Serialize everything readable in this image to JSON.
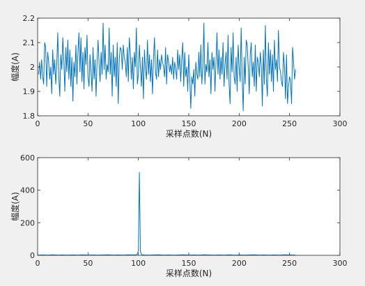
{
  "chart_data": [
    {
      "type": "line",
      "title": "",
      "xlabel": "采样点数(N)",
      "ylabel": "幅度(A)",
      "xlim": [
        0,
        300
      ],
      "ylim": [
        1.8,
        2.2
      ],
      "xticks": [
        "0",
        "50",
        "100",
        "150",
        "200",
        "250",
        "300"
      ],
      "yticks": [
        "1.8",
        "1.9",
        "2",
        "2.1",
        "2.2"
      ],
      "grid": false,
      "line_color": "#0072bd",
      "series": [
        {
          "x": [
            1,
            2,
            3,
            4,
            5,
            6,
            7,
            8,
            9,
            10,
            11,
            12,
            13,
            14,
            15,
            16,
            17,
            18,
            19,
            20,
            21,
            22,
            23,
            24,
            25,
            26,
            27,
            28,
            29,
            30,
            31,
            32,
            33,
            34,
            35,
            36,
            37,
            38,
            39,
            40,
            41,
            42,
            43,
            44,
            45,
            46,
            47,
            48,
            49,
            50,
            51,
            52,
            53,
            54,
            55,
            56,
            57,
            58,
            59,
            60,
            61,
            62,
            63,
            64,
            65,
            66,
            67,
            68,
            69,
            70,
            71,
            72,
            73,
            74,
            75,
            76,
            77,
            78,
            79,
            80,
            81,
            82,
            83,
            84,
            85,
            86,
            87,
            88,
            89,
            90,
            91,
            92,
            93,
            94,
            95,
            96,
            97,
            98,
            99,
            100,
            101,
            102,
            103,
            104,
            105,
            106,
            107,
            108,
            109,
            110,
            111,
            112,
            113,
            114,
            115,
            116,
            117,
            118,
            119,
            120,
            121,
            122,
            123,
            124,
            125,
            126,
            127,
            128,
            129,
            130,
            131,
            132,
            133,
            134,
            135,
            136,
            137,
            138,
            139,
            140,
            141,
            142,
            143,
            144,
            145,
            146,
            147,
            148,
            149,
            150,
            151,
            152,
            153,
            154,
            155,
            156,
            157,
            158,
            159,
            160,
            161,
            162,
            163,
            164,
            165,
            166,
            167,
            168,
            169,
            170,
            171,
            172,
            173,
            174,
            175,
            176,
            177,
            178,
            179,
            180,
            181,
            182,
            183,
            184,
            185,
            186,
            187,
            188,
            189,
            190,
            191,
            192,
            193,
            194,
            195,
            196,
            197,
            198,
            199,
            200,
            201,
            202,
            203,
            204,
            205,
            206,
            207,
            208,
            209,
            210,
            211,
            212,
            213,
            214,
            215,
            216,
            217,
            218,
            219,
            220,
            221,
            222,
            223,
            224,
            225,
            226,
            227,
            228,
            229,
            230,
            231,
            232,
            233,
            234,
            235,
            236,
            237,
            238,
            239,
            240,
            241,
            242,
            243,
            244,
            245,
            246,
            247,
            248,
            249,
            250,
            251,
            252,
            253,
            254,
            255,
            256
          ],
          "y": [
            1.97,
            2.02,
            1.95,
            2.03,
            1.96,
            1.93,
            2.1,
            2.08,
            1.92,
            2.06,
            2.02,
            1.95,
            2.0,
            1.89,
            2.07,
            1.97,
            2.03,
            1.93,
            2.01,
            2.14,
            1.96,
            1.88,
            2.05,
            1.99,
            2.12,
            2.03,
            1.9,
            2.08,
            1.98,
            2.11,
            1.95,
            2.07,
            1.92,
            2.04,
            1.86,
            2.02,
            1.96,
            2.09,
            1.93,
            2.06,
            2.14,
            1.98,
            2.12,
            1.94,
            2.06,
            1.91,
            2.08,
            2.01,
            2.13,
            1.96,
            1.92,
            2.05,
            1.98,
            1.9,
            2.08,
            1.95,
            2.03,
            1.88,
            2.02,
            2.11,
            2.01,
            1.94,
            2.06,
            1.97,
            2.18,
            1.99,
            2.09,
            1.95,
            2.01,
            1.98,
            2.16,
            1.97,
            2.06,
            1.88,
            2.09,
            1.96,
            2.04,
            1.92,
            2.1,
            1.85,
            2.03,
            2.08,
            2.07,
            1.99,
            2.09,
            2.04,
            2.02,
            1.96,
            2.08,
            1.94,
            2.12,
            2.06,
            1.95,
            2.04,
            1.91,
            2.06,
            2.0,
            2.16,
            1.93,
            1.97,
            2.09,
            2.0,
            1.92,
            2.04,
            1.87,
            2.07,
            1.99,
            1.95,
            2.11,
            1.97,
            2.05,
            1.94,
            2.03,
            1.89,
            2.04,
            2.12,
            1.98,
            1.95,
            2.07,
            1.96,
            2.03,
            1.99,
            2.05,
            2.02,
            2.0,
            1.96,
            2.08,
            1.93,
            2.05,
            2.02,
            1.98,
            2.01,
            1.97,
            2.04,
            1.95,
            2.02,
            1.99,
            1.95,
            2.07,
            1.99,
            2.05,
            1.94,
            2.03,
            2.1,
            1.92,
            2.06,
            1.96,
            2.0,
            1.9,
            2.05,
            1.95,
            1.83,
            1.96,
            1.93,
            1.99,
            1.88,
            2.02,
            1.97,
            1.95,
            2.06,
            1.96,
            2.09,
            1.93,
            2.0,
            2.18,
            1.93,
            2.01,
            1.98,
            2.1,
            1.96,
            2.03,
            1.89,
            2.06,
            1.99,
            2.04,
            1.9,
            2.02,
            2.14,
            1.97,
            2.07,
            1.95,
            2.04,
            1.97,
            2.1,
            1.92,
            2.01,
            2.06,
            1.95,
            2.13,
            1.93,
            1.85,
            2.08,
            1.98,
            2.14,
            1.96,
            1.93,
            2.04,
            1.9,
            2.09,
            2.0,
            1.94,
            2.16,
            1.96,
            1.82,
            2.04,
            1.93,
            2.11,
            2.09,
            2.0,
            1.89,
            2.05,
            2.1,
            1.96,
            2.02,
            1.92,
            2.09,
            1.9,
            2.04,
            2.02,
            1.96,
            2.06,
            2.0,
            1.84,
            2.07,
            1.93,
            2.17,
            1.95,
            1.88,
            2.1,
            1.97,
            2.07,
            1.94,
            2.05,
            1.9,
            2.11,
            1.99,
            2.03,
            1.94,
            2.15,
            2.0,
            1.98,
            1.94,
            1.92,
            2.06,
            2.0,
            1.87,
            2.05,
            1.85,
            1.92,
            1.96,
            1.94,
            1.85,
            2.08,
            2.02,
            1.95,
            1.99
          ]
        }
      ]
    },
    {
      "type": "line",
      "title": "",
      "xlabel": "采样点数(N)",
      "ylabel": "幅度(A)",
      "xlim": [
        0,
        300
      ],
      "ylim": [
        0,
        600
      ],
      "xticks": [
        "0",
        "50",
        "100",
        "150",
        "200",
        "250",
        "300"
      ],
      "yticks": [
        "0",
        "200",
        "400",
        "600"
      ],
      "grid": false,
      "line_color": "#0072bd",
      "series": [
        {
          "x": [
            1,
            5,
            10,
            15,
            20,
            25,
            30,
            35,
            40,
            45,
            50,
            55,
            60,
            65,
            70,
            75,
            80,
            85,
            90,
            95,
            98,
            99,
            100,
            101,
            102,
            103,
            104,
            106,
            110,
            115,
            120,
            125,
            130,
            135,
            140,
            145,
            150,
            155,
            160,
            165,
            170,
            175,
            180,
            185,
            190,
            195,
            200,
            205,
            210,
            215,
            220,
            225,
            230,
            235,
            240,
            245,
            250,
            256
          ],
          "y": [
            1,
            2,
            1,
            3,
            1,
            2,
            1,
            2,
            1,
            3,
            1,
            2,
            1,
            2,
            3,
            1,
            2,
            1,
            3,
            2,
            4,
            8,
            30,
            510,
            25,
            6,
            3,
            2,
            1,
            2,
            3,
            1,
            2,
            1,
            2,
            3,
            1,
            2,
            1,
            3,
            2,
            1,
            2,
            1,
            3,
            1,
            2,
            1,
            2,
            3,
            1,
            2,
            1,
            2,
            1,
            3,
            2,
            1
          ]
        }
      ]
    }
  ]
}
